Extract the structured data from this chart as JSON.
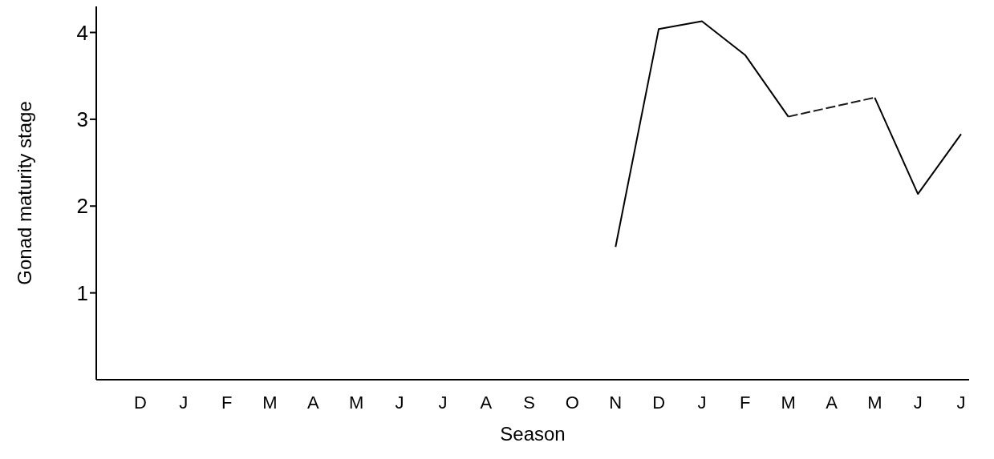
{
  "chart_data": {
    "type": "line",
    "xlabel": "Season",
    "ylabel": "Gonad maturity stage",
    "categories": [
      "D",
      "J",
      "F",
      "M",
      "A",
      "M",
      "J",
      "J",
      "A",
      "S",
      "O",
      "N",
      "D",
      "J",
      "F",
      "M",
      "A",
      "M",
      "J",
      "J"
    ],
    "series": [
      {
        "color": "#000000",
        "line_style": "solid",
        "values": [
          null,
          null,
          null,
          null,
          null,
          null,
          null,
          null,
          null,
          null,
          null,
          1.53,
          4.04,
          4.13,
          3.74,
          3.03,
          null,
          3.25,
          2.14,
          2.83
        ]
      },
      {
        "color": "#1a1a1a",
        "line_style": "dashed",
        "values": [
          null,
          null,
          null,
          null,
          null,
          null,
          null,
          null,
          null,
          null,
          null,
          null,
          null,
          null,
          null,
          3.03,
          3.14,
          3.25,
          null,
          null
        ]
      }
    ],
    "ylim": [
      0,
      4.3
    ],
    "yticks": [
      1,
      2,
      3,
      4
    ],
    "grid": false,
    "marker": "none"
  }
}
